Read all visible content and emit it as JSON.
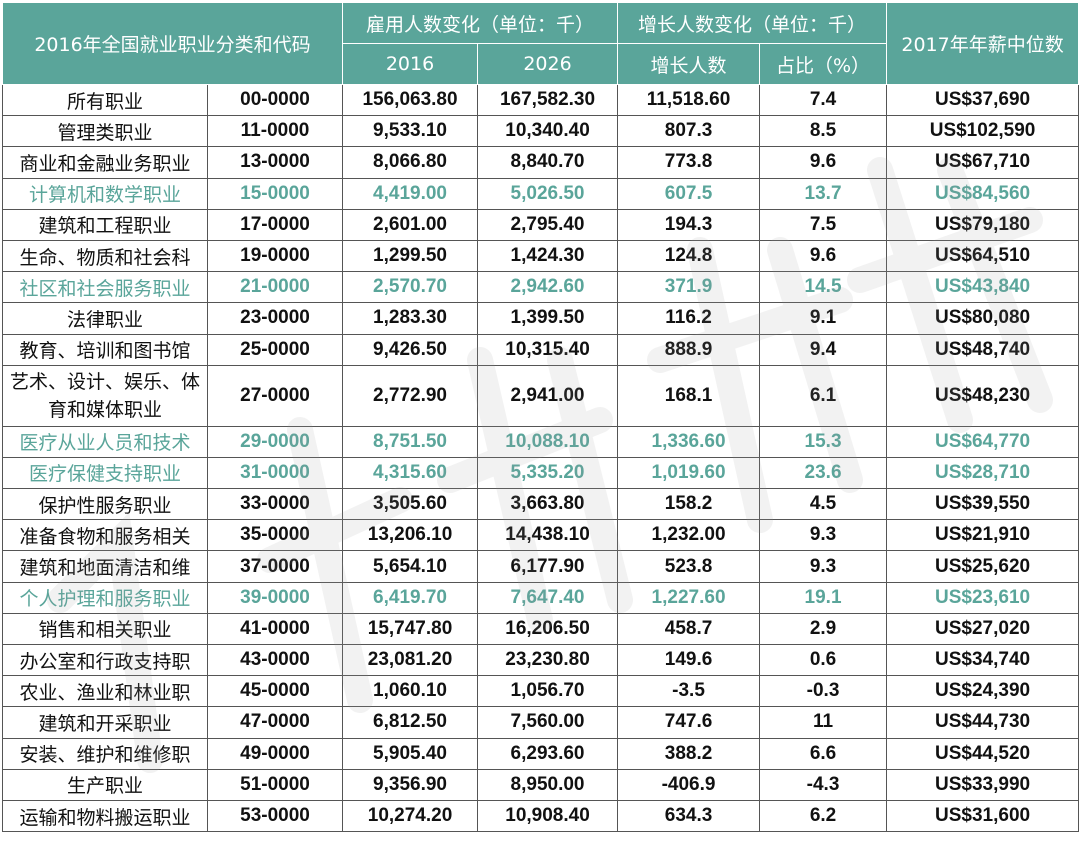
{
  "header": {
    "category": "2016年全国就业职业分类和代码",
    "employment_group": "雇用人数变化（单位：千）",
    "growth_group": "增长人数变化（单位：千）",
    "median_wage": "2017年年薪中位数",
    "year_2016": "2016",
    "year_2026": "2026",
    "growth_count": "增长人数",
    "share": "占比（%）"
  },
  "accent_color": "#5aa59a",
  "rows": [
    {
      "name": "所有职业",
      "code": "00-0000",
      "e2016": "156,063.80",
      "e2026": "167,582.30",
      "growth": "11,518.60",
      "pct": "7.4",
      "wage": "US$37,690",
      "highlight": false
    },
    {
      "name": "管理类职业",
      "code": "11-0000",
      "e2016": "9,533.10",
      "e2026": "10,340.40",
      "growth": "807.3",
      "pct": "8.5",
      "wage": "US$102,590",
      "highlight": false
    },
    {
      "name": "商业和金融业务职业",
      "code": "13-0000",
      "e2016": "8,066.80",
      "e2026": "8,840.70",
      "growth": "773.8",
      "pct": "9.6",
      "wage": "US$67,710",
      "highlight": false
    },
    {
      "name": "计算机和数学职业",
      "code": "15-0000",
      "e2016": "4,419.00",
      "e2026": "5,026.50",
      "growth": "607.5",
      "pct": "13.7",
      "wage": "US$84,560",
      "highlight": true
    },
    {
      "name": "建筑和工程职业",
      "code": "17-0000",
      "e2016": "2,601.00",
      "e2026": "2,795.40",
      "growth": "194.3",
      "pct": "7.5",
      "wage": "US$79,180",
      "highlight": false
    },
    {
      "name": "生命、物质和社会科",
      "code": "19-0000",
      "e2016": "1,299.50",
      "e2026": "1,424.30",
      "growth": "124.8",
      "pct": "9.6",
      "wage": "US$64,510",
      "highlight": false
    },
    {
      "name": "社区和社会服务职业",
      "code": "21-0000",
      "e2016": "2,570.70",
      "e2026": "2,942.60",
      "growth": "371.9",
      "pct": "14.5",
      "wage": "US$43,840",
      "highlight": true
    },
    {
      "name": "法律职业",
      "code": "23-0000",
      "e2016": "1,283.30",
      "e2026": "1,399.50",
      "growth": "116.2",
      "pct": "9.1",
      "wage": "US$80,080",
      "highlight": false
    },
    {
      "name": "教育、培训和图书馆",
      "code": "25-0000",
      "e2016": "9,426.50",
      "e2026": "10,315.40",
      "growth": "888.9",
      "pct": "9.4",
      "wage": "US$48,740",
      "highlight": false
    },
    {
      "name": "艺术、设计、娱乐、体育和媒体职业",
      "code": "27-0000",
      "e2016": "2,772.90",
      "e2026": "2,941.00",
      "growth": "168.1",
      "pct": "6.1",
      "wage": "US$48,230",
      "highlight": false,
      "tall": true
    },
    {
      "name": "医疗从业人员和技术",
      "code": "29-0000",
      "e2016": "8,751.50",
      "e2026": "10,088.10",
      "growth": "1,336.60",
      "pct": "15.3",
      "wage": "US$64,770",
      "highlight": true
    },
    {
      "name": "医疗保健支持职业",
      "code": "31-0000",
      "e2016": "4,315.60",
      "e2026": "5,335.20",
      "growth": "1,019.60",
      "pct": "23.6",
      "wage": "US$28,710",
      "highlight": true
    },
    {
      "name": "保护性服务职业",
      "code": "33-0000",
      "e2016": "3,505.60",
      "e2026": "3,663.80",
      "growth": "158.2",
      "pct": "4.5",
      "wage": "US$39,550",
      "highlight": false
    },
    {
      "name": "准备食物和服务相关",
      "code": "35-0000",
      "e2016": "13,206.10",
      "e2026": "14,438.10",
      "growth": "1,232.00",
      "pct": "9.3",
      "wage": "US$21,910",
      "highlight": false
    },
    {
      "name": "建筑和地面清洁和维",
      "code": "37-0000",
      "e2016": "5,654.10",
      "e2026": "6,177.90",
      "growth": "523.8",
      "pct": "9.3",
      "wage": "US$25,620",
      "highlight": false
    },
    {
      "name": "个人护理和服务职业",
      "code": "39-0000",
      "e2016": "6,419.70",
      "e2026": "7,647.40",
      "growth": "1,227.60",
      "pct": "19.1",
      "wage": "US$23,610",
      "highlight": true
    },
    {
      "name": "销售和相关职业",
      "code": "41-0000",
      "e2016": "15,747.80",
      "e2026": "16,206.50",
      "growth": "458.7",
      "pct": "2.9",
      "wage": "US$27,020",
      "highlight": false
    },
    {
      "name": "办公室和行政支持职",
      "code": "43-0000",
      "e2016": "23,081.20",
      "e2026": "23,230.80",
      "growth": "149.6",
      "pct": "0.6",
      "wage": "US$34,740",
      "highlight": false
    },
    {
      "name": "农业、渔业和林业职",
      "code": "45-0000",
      "e2016": "1,060.10",
      "e2026": "1,056.70",
      "growth": "-3.5",
      "pct": "-0.3",
      "wage": "US$24,390",
      "highlight": false
    },
    {
      "name": "建筑和开采职业",
      "code": "47-0000",
      "e2016": "6,812.50",
      "e2026": "7,560.00",
      "growth": "747.6",
      "pct": "11",
      "wage": "US$44,730",
      "highlight": false
    },
    {
      "name": "安装、维护和维修职",
      "code": "49-0000",
      "e2016": "5,905.40",
      "e2026": "6,293.60",
      "growth": "388.2",
      "pct": "6.6",
      "wage": "US$44,520",
      "highlight": false
    },
    {
      "name": "生产职业",
      "code": "51-0000",
      "e2016": "9,356.90",
      "e2026": "8,950.00",
      "growth": "-406.9",
      "pct": "-4.3",
      "wage": "US$33,990",
      "highlight": false
    },
    {
      "name": "运输和物料搬运职业",
      "code": "53-0000",
      "e2016": "10,274.20",
      "e2026": "10,908.40",
      "growth": "634.3",
      "pct": "6.2",
      "wage": "US$31,600",
      "highlight": false
    }
  ]
}
